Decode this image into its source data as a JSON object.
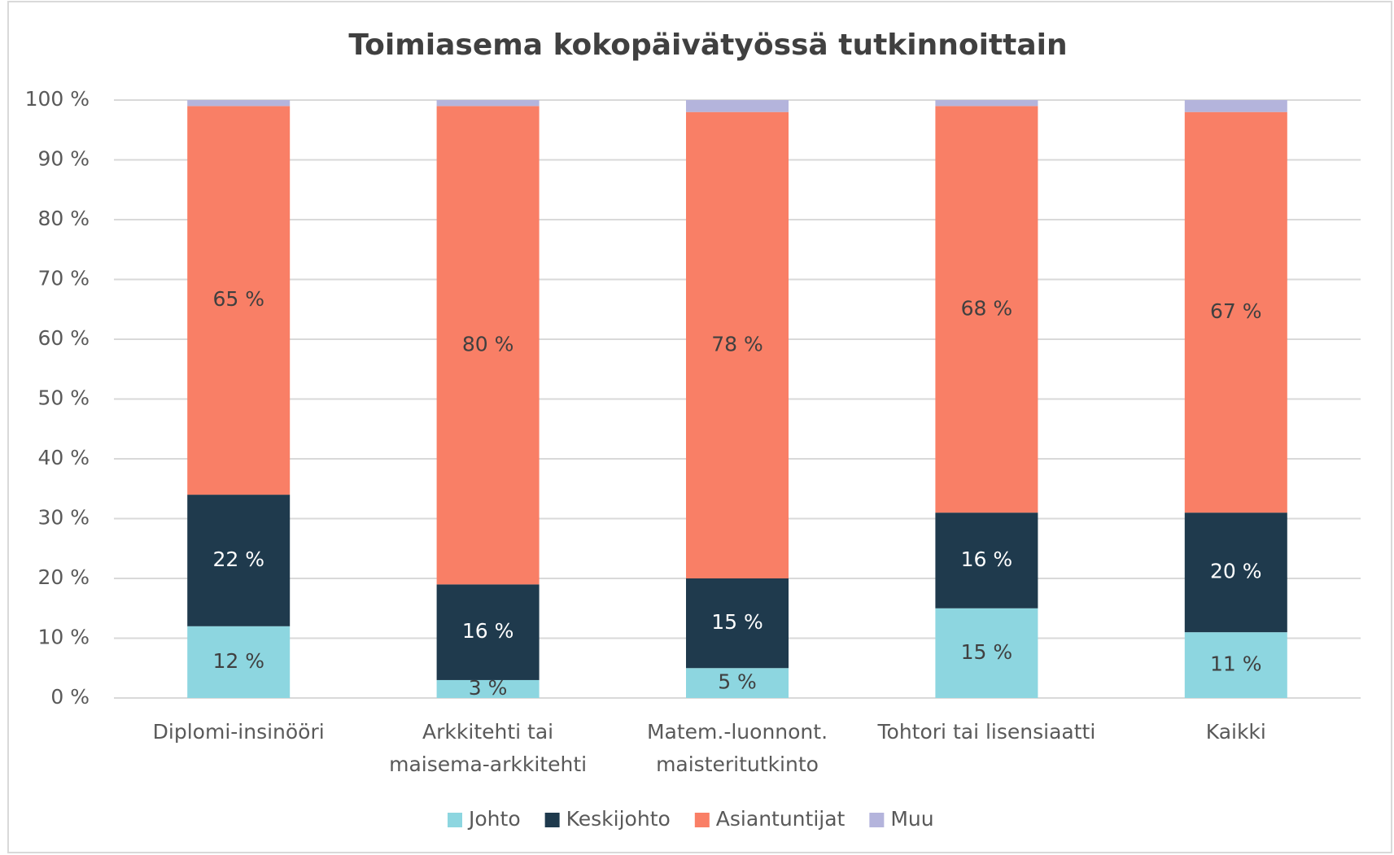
{
  "chart_data": {
    "type": "stacked_bar",
    "title": "Toimiasema kokopäivätyössä tutkinnoittain",
    "categories": [
      [
        "Diplomi-insinööri"
      ],
      [
        "Arkkitehti tai",
        "maisema-arkkitehti"
      ],
      [
        "Matem.-luonnont.",
        "maisteritutkinto"
      ],
      [
        "Tohtori tai lisensiaatti"
      ],
      [
        "Kaikki"
      ]
    ],
    "series": [
      {
        "name": "Johto",
        "color": "#8dd6e0",
        "label_color": "#404040",
        "values": [
          12,
          3,
          5,
          15,
          11
        ],
        "value_labels": [
          "12 %",
          "3 %",
          "5 %",
          "15 %",
          "11 %"
        ]
      },
      {
        "name": "Keskijohto",
        "color": "#1f3a4d",
        "label_color": "#ffffff",
        "values": [
          22,
          16,
          15,
          16,
          20
        ],
        "value_labels": [
          "22 %",
          "16 %",
          "15 %",
          "16 %",
          "20 %"
        ]
      },
      {
        "name": "Asiantuntijat",
        "color": "#f97f66",
        "label_color": "#404040",
        "values": [
          65,
          80,
          78,
          68,
          67
        ],
        "value_labels": [
          "65 %",
          "80 %",
          "78 %",
          "68 %",
          "67 %"
        ]
      },
      {
        "name": "Muu",
        "color": "#b4b4dc",
        "values": [
          1,
          1,
          2,
          1,
          2
        ]
      }
    ],
    "ylim": [
      0,
      100
    ],
    "yticks": [
      {
        "value": 0,
        "label": "0 %"
      },
      {
        "value": 10,
        "label": "10 %"
      },
      {
        "value": 20,
        "label": "20 %"
      },
      {
        "value": 30,
        "label": "30 %"
      },
      {
        "value": 40,
        "label": "40 %"
      },
      {
        "value": 50,
        "label": "50 %"
      },
      {
        "value": 60,
        "label": "60 %"
      },
      {
        "value": 70,
        "label": "70 %"
      },
      {
        "value": 80,
        "label": "80 %"
      },
      {
        "value": 90,
        "label": "90 %"
      },
      {
        "value": 100,
        "label": "100 %"
      }
    ],
    "grid": true,
    "legend": "bottom"
  }
}
